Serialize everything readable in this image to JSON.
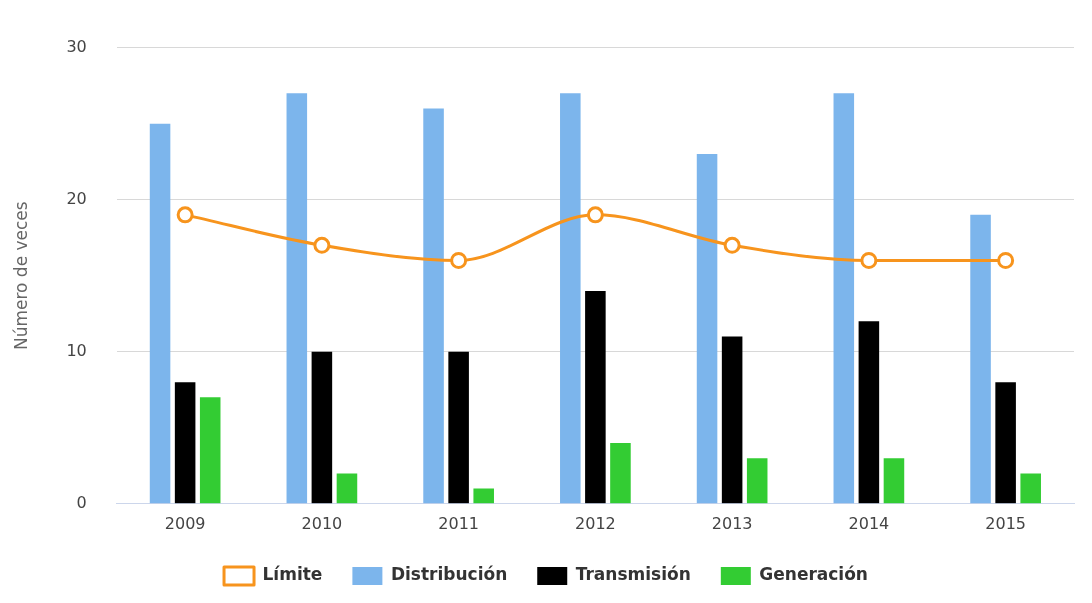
{
  "chart_data": {
    "type": "bar",
    "ylabel": "Número de veces",
    "categories": [
      "2009",
      "2010",
      "2011",
      "2012",
      "2013",
      "2014",
      "2015"
    ],
    "series": [
      {
        "name": "Distribución",
        "color": "#7cb5ec",
        "values": [
          25,
          27,
          26,
          27,
          23,
          27,
          19
        ]
      },
      {
        "name": "Transmisión",
        "color": "#000000",
        "values": [
          8,
          10,
          10,
          14,
          11,
          12,
          8
        ]
      },
      {
        "name": "Generación",
        "color": "#33cc33",
        "values": [
          7,
          2,
          1,
          4,
          3,
          3,
          2
        ]
      },
      {
        "name": "Límite",
        "type": "line",
        "color": "#f7941d",
        "values": [
          19,
          17,
          16,
          19,
          17,
          16,
          16
        ]
      }
    ],
    "ylim": [
      0,
      30
    ],
    "yticks": [
      0,
      10,
      20,
      30
    ],
    "grid": "y",
    "legend": "bottom",
    "marker": "circle"
  }
}
